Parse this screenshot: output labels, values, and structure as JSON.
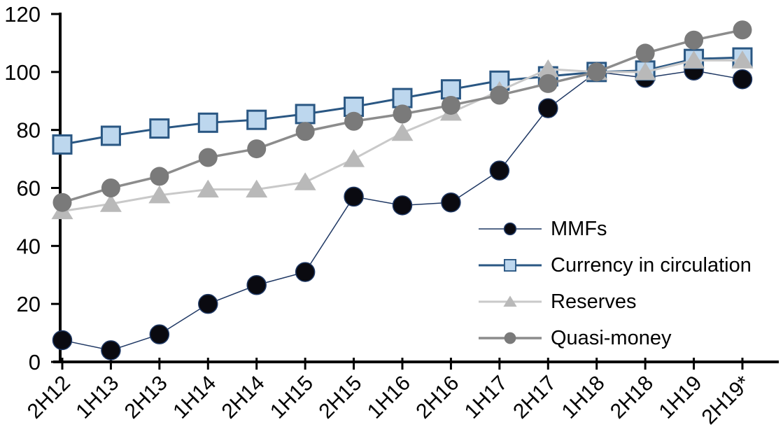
{
  "chart_data": {
    "type": "line",
    "title": "",
    "xlabel": "",
    "ylabel": "",
    "ylim": [
      0,
      120
    ],
    "y_ticks": [
      0,
      20,
      40,
      60,
      80,
      100,
      120
    ],
    "grid": false,
    "legend_position": "inside-right",
    "axis_color": "#000000",
    "background_color": "#ffffff",
    "categories": [
      "2H12",
      "1H13",
      "2H13",
      "1H14",
      "2H14",
      "1H15",
      "2H15",
      "1H16",
      "2H16",
      "1H17",
      "2H17",
      "1H18",
      "2H18",
      "1H19",
      "2H19*"
    ],
    "series": [
      {
        "name": "MMFs",
        "marker": "circle",
        "line_color": "#1f3864",
        "marker_fill": "#0a0a10",
        "marker_stroke": "#1f3864",
        "line_width": 1.5,
        "values": [
          7.5,
          4,
          9.5,
          20,
          26.5,
          31,
          57,
          54,
          55,
          66,
          87.5,
          100,
          98,
          100.5,
          97.5
        ]
      },
      {
        "name": "Currency in circulation",
        "marker": "square",
        "line_color": "#2a5783",
        "marker_fill": "#bdd7ee",
        "marker_stroke": "#2a5783",
        "line_width": 3,
        "values": [
          75,
          78,
          80.5,
          82.5,
          83.5,
          85.5,
          88,
          91,
          94,
          97,
          98.5,
          100,
          100.5,
          104.5,
          105
        ]
      },
      {
        "name": "Reserves",
        "marker": "triangle",
        "line_color": "#c9c9c9",
        "marker_fill": "#b9b9b9",
        "marker_stroke": "none",
        "line_width": 3,
        "values": [
          52,
          54.5,
          57.5,
          59.5,
          59.5,
          62,
          70,
          79,
          86,
          93.5,
          101,
          100,
          100,
          104,
          104
        ]
      },
      {
        "name": "Quasi-money",
        "marker": "circle",
        "line_color": "#8c8c8c",
        "marker_fill": "#7a7a7a",
        "marker_stroke": "none",
        "line_width": 3.5,
        "values": [
          55,
          60,
          64,
          70.5,
          73.5,
          79.5,
          83,
          85.5,
          88.5,
          92,
          96,
          100,
          106.5,
          111,
          114.5
        ]
      }
    ]
  }
}
